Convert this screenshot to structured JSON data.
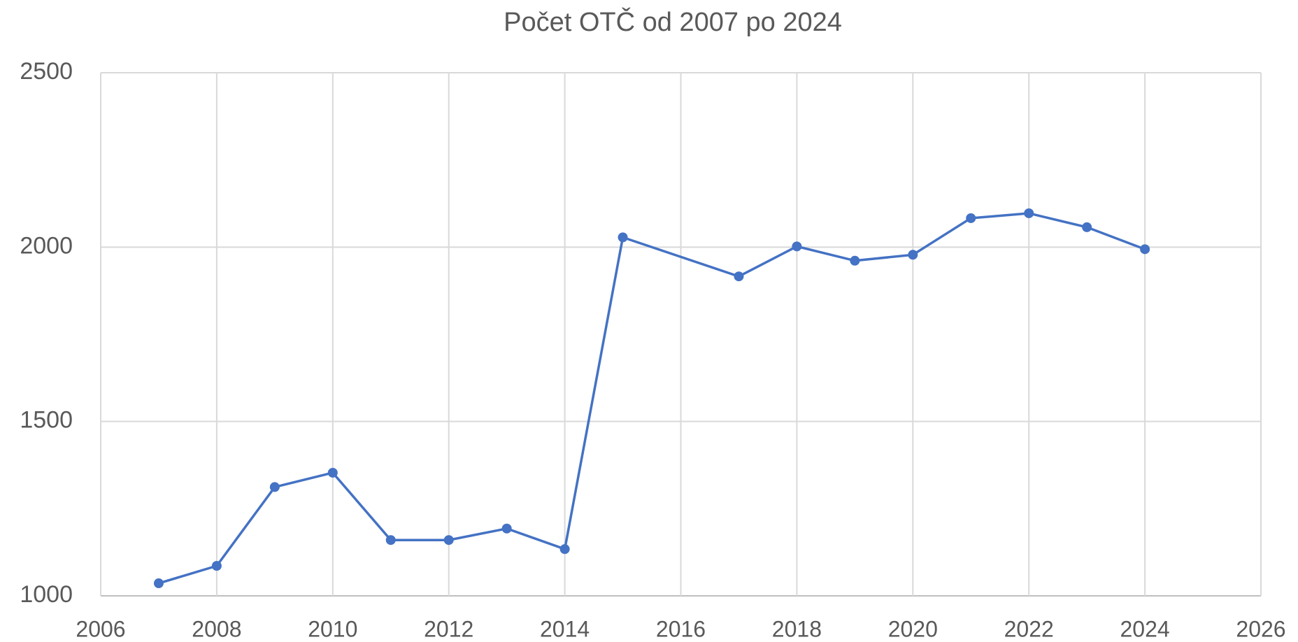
{
  "chart_data": {
    "type": "line",
    "title": "Počet OTČ od 2007 po 2024",
    "x": [
      2007,
      2008,
      2009,
      2010,
      2011,
      2012,
      2013,
      2014,
      2015,
      2017,
      2018,
      2019,
      2020,
      2021,
      2022,
      2023,
      2024
    ],
    "series": [
      {
        "name": "Počet OTČ",
        "color": "#4472c4",
        "values": [
          1036,
          1086,
          1312,
          1353,
          1160,
          1160,
          1193,
          1134,
          2028,
          1916,
          2002,
          1961,
          1978,
          2083,
          2097,
          2057,
          1994
        ]
      }
    ],
    "xlim": [
      2006,
      2026
    ],
    "xticks": [
      2006,
      2008,
      2010,
      2012,
      2014,
      2016,
      2018,
      2020,
      2022,
      2024,
      2026
    ],
    "ylim": [
      1000,
      2500
    ],
    "yticks": [
      1000,
      1500,
      2000,
      2500
    ],
    "grid": true
  }
}
